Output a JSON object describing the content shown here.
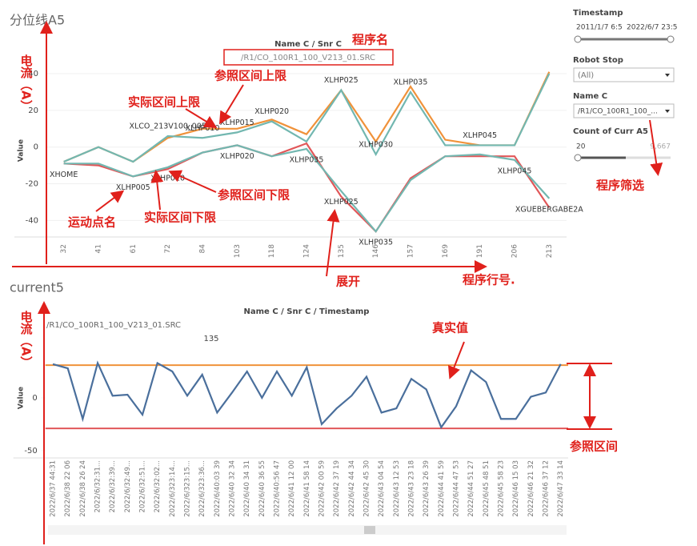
{
  "chart_data": [
    {
      "type": "line",
      "title": "分位线A5",
      "subtitle": "Name C / Snr C",
      "program": "/R1/CO_100R1_100_V213_01.SRC",
      "y_label": "Value",
      "categories": [
        "32",
        "41",
        "61",
        "72",
        "84",
        "103",
        "118",
        "124",
        "135",
        "146",
        "157",
        "169",
        "191",
        "206",
        "213"
      ],
      "ylim": [
        -49,
        47
      ],
      "yticks": [
        40,
        20,
        0,
        -20,
        -40
      ],
      "grid": true,
      "series": [
        {
          "color": "#f0923a",
          "values": [
            -8,
            0,
            -8,
            5,
            10,
            10,
            15,
            7,
            31,
            3,
            33,
            4,
            1,
            1,
            41
          ]
        },
        {
          "color": "#72b7b0",
          "values": [
            -8,
            0,
            -8,
            6,
            5,
            8,
            14,
            3,
            31,
            -4,
            30,
            1,
            1,
            1,
            40
          ],
          "labels": [
            null,
            null,
            null,
            "XLCO_213V100_005",
            "XLHP010",
            "XLHP015",
            "XLHP020",
            null,
            "XLHP025",
            "XLHP030",
            "XLHP035",
            null,
            "XLHP045",
            null,
            null
          ]
        },
        {
          "color": "#e15759",
          "values": [
            -9,
            -10,
            -16,
            -12,
            -3,
            1,
            -5,
            2,
            -27,
            -46,
            -17,
            -5,
            -5,
            -5,
            -33
          ]
        },
        {
          "color": "#72b7b0",
          "values": [
            -9,
            -9,
            -16,
            -11,
            -3,
            1,
            -5,
            -1,
            -24,
            -46,
            -18,
            -5,
            -4,
            -7,
            -28
          ],
          "labels": [
            "XHOME",
            null,
            "XLHP005",
            "XLHP010",
            null,
            "XLHP020",
            null,
            "XLHP035",
            "XLHP025",
            "XLHP035",
            null,
            null,
            null,
            "XLHP045",
            "XGUEBERGABE2A"
          ]
        }
      ]
    },
    {
      "type": "line",
      "title": "current5",
      "subtitle": "Name C / Snr C / Timestamp",
      "program": "/R1/CO_100R1_100_V213_01.SRC",
      "marker": "135",
      "y_label": "Value",
      "categories": [
        "2022/6/37 44:31",
        "2022/6/38 22 06",
        "2022/6/38 26 24",
        "2022/6/32:31...",
        "2022/6/32:39...",
        "2022/6/32:49...",
        "2022/6/32:51...",
        "2022/6/32:02...",
        "2022/6/323:14...",
        "2022/6/323:15...",
        "2022/6/323:36...",
        "2022/6/40:03 39",
        "2022/6/40 32 34",
        "2022/6/40 34 31",
        "2022/6/40 36 55",
        "2022/6/40:56 47",
        "2022/6/41 12 00",
        "2022/6/41 58 14",
        "2022/6/42 00 59",
        "2022/6/42 37 19",
        "2022/6/42 44 34",
        "2022/6/42 45 30",
        "2022/6/43 04 54",
        "2022/6/43 12 53",
        "2022/6/43 23 18",
        "2022/6/43 26 39",
        "2022/6/44 41 59",
        "2022/6/44 47 53",
        "2022/6/44 51 27",
        "2022/6/45 48 51",
        "2022/6/45 58 23",
        "2022/6/46 15 03",
        "2022/6/46 21 32",
        "2022/6/46 37 12",
        "2022/6/47 33 14"
      ],
      "ylim": [
        -57,
        66
      ],
      "yticks": [
        0,
        -50
      ],
      "reference_upper": 31,
      "reference_upper_color": "#f0923a",
      "reference_lower": -29,
      "reference_lower_color": "#e15759",
      "series": [
        {
          "color": "#4a6f9c",
          "values": [
            32,
            28,
            -20,
            33,
            2,
            3,
            -16,
            33,
            25,
            2,
            22,
            -14,
            5,
            25,
            0,
            25,
            2,
            29,
            -25,
            -10,
            2,
            20,
            -14,
            -10,
            18,
            8,
            -28,
            -8,
            26,
            15,
            -20,
            -20,
            1,
            5,
            32
          ]
        }
      ]
    }
  ],
  "sidebar": {
    "filters": [
      {
        "title": "Timestamp",
        "range": [
          "2011/1/7 6:5",
          "2022/6/7 23:5"
        ]
      },
      {
        "title": "Robot Stop",
        "value": "(All)"
      },
      {
        "title": "Name C",
        "value": "/R1/CO_100R1_100_..."
      },
      {
        "title": "Count of Curr A5",
        "range": [
          "20",
          "9,667"
        ]
      }
    ]
  },
  "annotations": [
    "电流（A）",
    "程序名",
    "参照区间上限",
    "实际区间上限",
    "运动点名",
    "实际区间下限",
    "参照区间下限",
    "展开",
    "程序行号.",
    "程序筛选",
    "电流（A）",
    "真实值",
    "参照区间"
  ]
}
